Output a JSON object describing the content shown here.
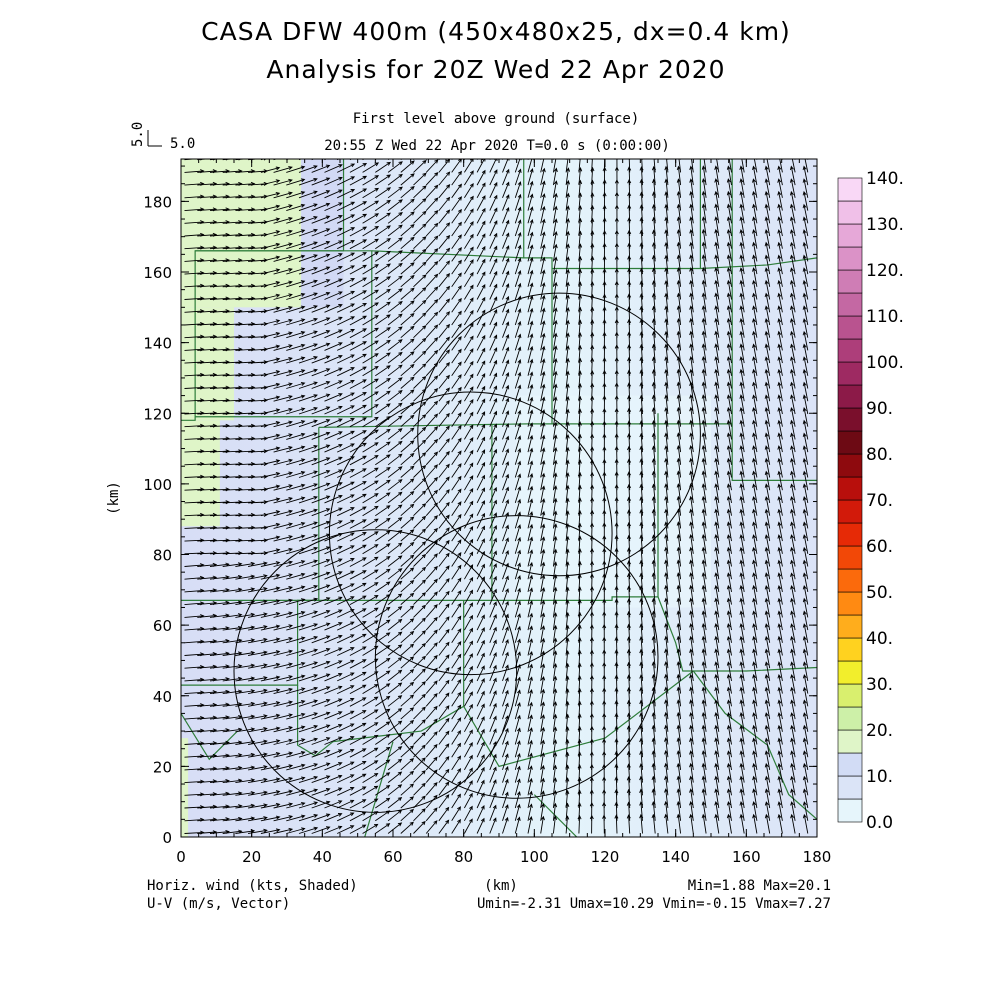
{
  "header": {
    "title_line1": "CASA DFW 400m (450x480x25, dx=0.4 km)",
    "title_line2": "Analysis for 20Z Wed 22 Apr 2020",
    "subtitle_line1": "First level above ground (surface)",
    "subtitle_line2": "20:55 Z Wed 22 Apr 2020    T=0.0 s (0:00:00)",
    "ref_vector_label": "5.0",
    "ref_vector_label_rot": "5.0"
  },
  "footer": {
    "left_line1": "Horiz. wind (kts, Shaded)",
    "left_line2": "U-V (m/s, Vector)",
    "center": "(km)",
    "right_line1": "Min=1.88 Max=20.1",
    "right_line2": "Umin=-2.31 Umax=10.29 Vmin=-0.15 Vmax=7.27"
  },
  "chart_data": {
    "type": "heatmap",
    "xlabel": "(km)",
    "ylabel": "(km)",
    "xlim": [
      0,
      180
    ],
    "ylim": [
      0,
      192
    ],
    "x_ticks": [
      "0",
      "20",
      "40",
      "60",
      "80",
      "100",
      "120",
      "140",
      "160",
      "180"
    ],
    "y_ticks": [
      "0",
      "20",
      "40",
      "60",
      "80",
      "100",
      "120",
      "140",
      "160",
      "180"
    ],
    "colorbar": {
      "labels": [
        "0.0",
        "10.",
        "20.",
        "30.",
        "40.",
        "50.",
        "60.",
        "70.",
        "80.",
        "90.",
        "100.",
        "110.",
        "120.",
        "130.",
        "140."
      ],
      "colors": [
        "#e6f5fb",
        "#dbe4f7",
        "#d2dcf5",
        "#dff5c8",
        "#cdf0a8",
        "#d9ef6e",
        "#f2ee2c",
        "#ffd21f",
        "#ffad1c",
        "#ff8a12",
        "#fb6a0c",
        "#f24807",
        "#e62a06",
        "#d21a0a",
        "#b80f0c",
        "#8e0a0e",
        "#6d0a14",
        "#7a0f2c",
        "#8c1a48",
        "#9e2a62",
        "#ad3e7a",
        "#b9538f",
        "#c468a3",
        "#cf7db5",
        "#db92c7",
        "#e6a8d8",
        "#f0c0e8",
        "#f9d8f6"
      ]
    },
    "radar_circles_center_km": [
      [
        55,
        47
      ],
      [
        95,
        51
      ],
      [
        82,
        86
      ],
      [
        107,
        114
      ]
    ],
    "radar_circle_radius_km": 40,
    "wind_field": {
      "units": "m/s",
      "umin": -2.31,
      "umax": 10.29,
      "vmin": -0.15,
      "vmax": 7.27,
      "speed_min_kts": 1.88,
      "speed_max_kts": 20.1
    }
  }
}
